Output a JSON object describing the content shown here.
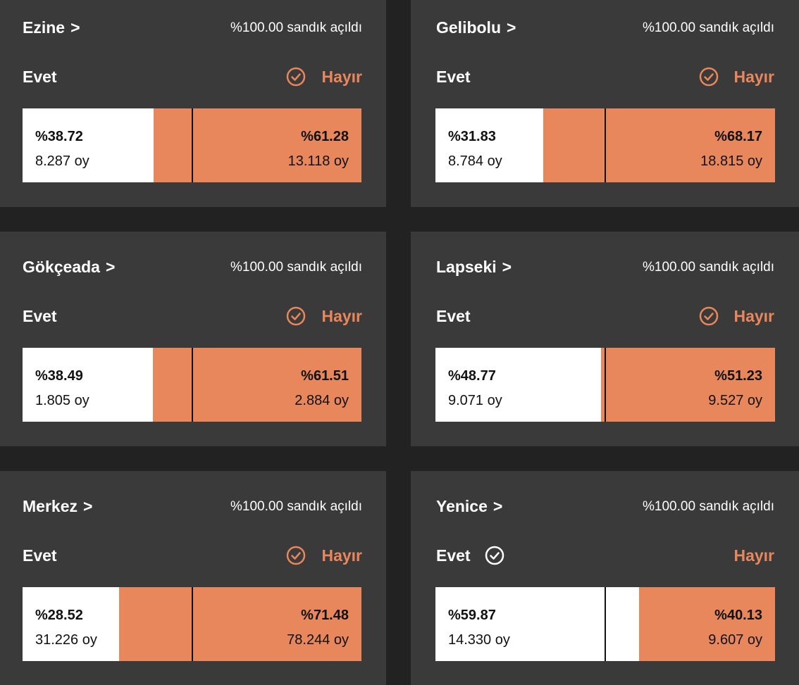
{
  "colors": {
    "background": "#222222",
    "card": "#3a3a3a",
    "accent_orange": "#e8875b",
    "yes_white": "#ffffff",
    "text_dark": "#111111"
  },
  "cards": [
    {
      "district": "Ezine",
      "chevron": ">",
      "status": "%100.00 sandık açıldı",
      "yes_label": "Evet",
      "no_label": "Hayır",
      "winner": "no",
      "winner_icon": "check-circle-icon",
      "yes_pct_text": "%38.72",
      "yes_votes": "8.287 oy",
      "no_pct_text": "%61.28",
      "no_votes": "13.118 oy",
      "yes_share": 38.72
    },
    {
      "district": "Gelibolu",
      "chevron": ">",
      "status": "%100.00 sandık açıldı",
      "yes_label": "Evet",
      "no_label": "Hayır",
      "winner": "no",
      "winner_icon": "check-circle-icon",
      "yes_pct_text": "%31.83",
      "yes_votes": "8.784 oy",
      "no_pct_text": "%68.17",
      "no_votes": "18.815 oy",
      "yes_share": 31.83
    },
    {
      "district": "Gökçeada",
      "chevron": ">",
      "status": "%100.00 sandık açıldı",
      "yes_label": "Evet",
      "no_label": "Hayır",
      "winner": "no",
      "winner_icon": "check-circle-icon",
      "yes_pct_text": "%38.49",
      "yes_votes": "1.805 oy",
      "no_pct_text": "%61.51",
      "no_votes": "2.884 oy",
      "yes_share": 38.49
    },
    {
      "district": "Lapseki",
      "chevron": ">",
      "status": "%100.00 sandık açıldı",
      "yes_label": "Evet",
      "no_label": "Hayır",
      "winner": "no",
      "winner_icon": "check-circle-icon",
      "yes_pct_text": "%48.77",
      "yes_votes": "9.071 oy",
      "no_pct_text": "%51.23",
      "no_votes": "9.527 oy",
      "yes_share": 48.77
    },
    {
      "district": "Merkez",
      "chevron": ">",
      "status": "%100.00 sandık açıldı",
      "yes_label": "Evet",
      "no_label": "Hayır",
      "winner": "no",
      "winner_icon": "check-circle-icon",
      "yes_pct_text": "%28.52",
      "yes_votes": "31.226 oy",
      "no_pct_text": "%71.48",
      "no_votes": "78.244 oy",
      "yes_share": 28.52
    },
    {
      "district": "Yenice",
      "chevron": ">",
      "status": "%100.00 sandık açıldı",
      "yes_label": "Evet",
      "no_label": "Hayır",
      "winner": "yes",
      "winner_icon": "check-circle-icon",
      "yes_pct_text": "%59.87",
      "yes_votes": "14.330 oy",
      "no_pct_text": "%40.13",
      "no_votes": "9.607 oy",
      "yes_share": 59.87
    }
  ]
}
